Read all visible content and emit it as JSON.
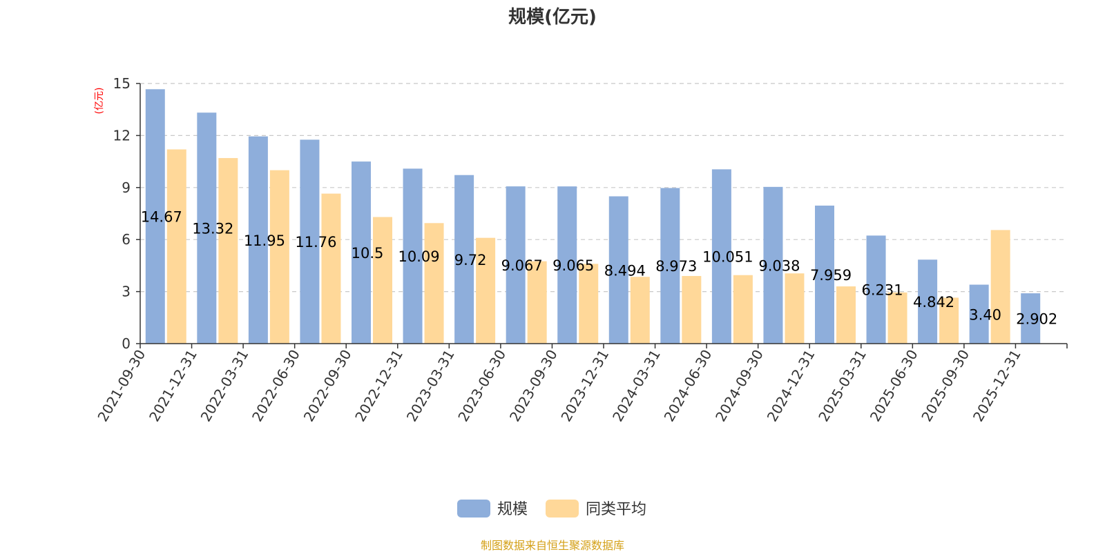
{
  "chart_data": {
    "type": "bar",
    "title": "规模(亿元)",
    "ylabel": "(亿元)",
    "xlabel": "",
    "ylim": [
      0,
      15
    ],
    "yticks": [
      0,
      3,
      6,
      9,
      12,
      15
    ],
    "grid": true,
    "legend_position": "bottom",
    "categories": [
      "2021-09-30",
      "2021-12-31",
      "2022-03-31",
      "2022-06-30",
      "2022-09-30",
      "2022-12-31",
      "2023-03-31",
      "2023-06-30",
      "2023-09-30",
      "2023-12-31",
      "2024-03-31",
      "2024-06-30",
      "2024-09-30",
      "2024-12-31",
      "2025-03-31",
      "2025-06-30",
      "2025-09-30",
      "2025-12-31"
    ],
    "series": [
      {
        "name": "规模",
        "color": "#8eaedb",
        "values": [
          14.67,
          13.32,
          11.95,
          11.76,
          10.5,
          10.09,
          9.72,
          9.067,
          9.065,
          8.494,
          8.973,
          10.051,
          9.038,
          7.959,
          6.231,
          4.842,
          3.4,
          2.902
        ],
        "labels": [
          "14.67",
          "13.32",
          "11.95",
          "11.76",
          "10.5",
          "10.09",
          "9.72",
          "9.067",
          "9.065",
          "8.494",
          "8.973",
          "10.051",
          "9.038",
          "7.959",
          "6.231",
          "4.842",
          "3.40",
          "2.902"
        ]
      },
      {
        "name": "同类平均",
        "color": "#ffd899",
        "values": [
          11.2,
          10.7,
          10.0,
          8.65,
          7.3,
          6.95,
          6.1,
          4.75,
          4.6,
          3.85,
          3.9,
          3.95,
          4.05,
          3.3,
          2.95,
          2.65,
          6.55,
          null
        ]
      }
    ]
  },
  "footer": {
    "source": "制图数据来自恒生聚源数据库"
  }
}
